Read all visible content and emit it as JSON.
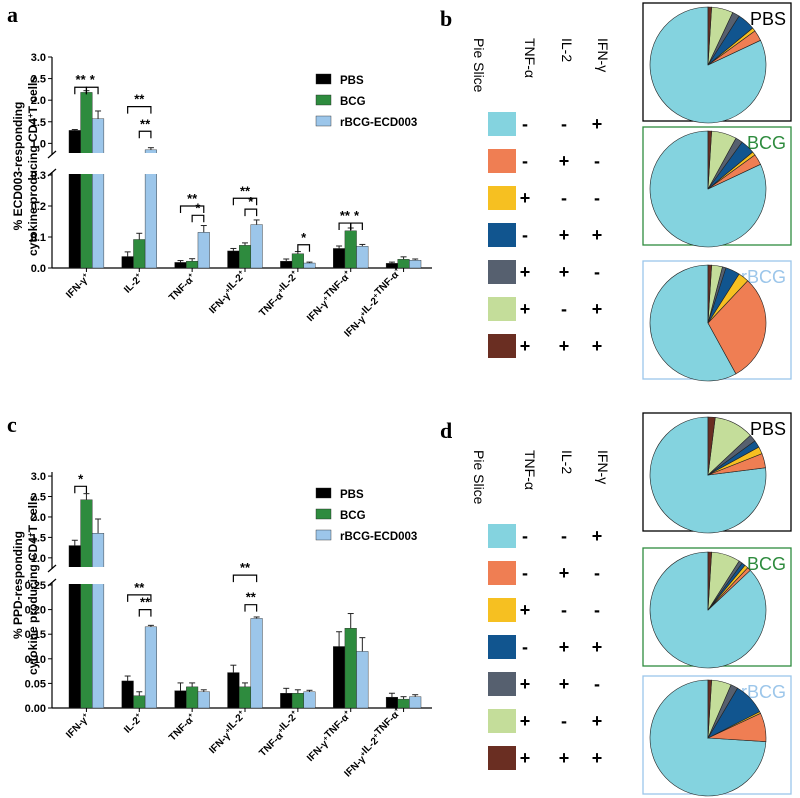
{
  "panel_labels": {
    "a": "a",
    "b": "b",
    "c": "c",
    "d": "d"
  },
  "colors": {
    "PBS": "#000000",
    "BCG": "#2e8b3e",
    "rBCG": "#9cc6ea"
  },
  "chart_data": [
    {
      "type": "bar",
      "panel": "a",
      "ylabel_line1": "% ECD003-responding",
      "ylabel_line2": "cytokine producing CD4",
      "ylabel_sup": "+",
      "ylabel_tail": "T cells",
      "categories": [
        "IFN-γ",
        "IL-2",
        "TNF-α",
        "IFN-γ IL-2",
        "TNF-α IL-2",
        "IFN-γ TNF-α",
        "IFN-γ IL-2 TNF-α"
      ],
      "category_labels": [
        [
          [
            "IFN-γ",
            "+"
          ]
        ],
        [
          [
            "IL-2",
            "+"
          ]
        ],
        [
          [
            "TNF-α",
            "+"
          ]
        ],
        [
          [
            "IFN-γ",
            "+"
          ],
          [
            "IL-2",
            "+"
          ]
        ],
        [
          [
            "TNF-α",
            "+"
          ],
          [
            "IL-2",
            "+"
          ]
        ],
        [
          [
            "IFN-γ",
            "+"
          ],
          [
            "TNF-α",
            "+"
          ]
        ],
        [
          [
            "IFN-γ",
            "+"
          ],
          [
            "IL-2",
            "+"
          ],
          [
            "TNF-α",
            "+"
          ]
        ]
      ],
      "series": [
        {
          "name": "PBS",
          "values": [
            1.3,
            0.037,
            0.018,
            0.055,
            0.022,
            0.063,
            0.015
          ],
          "errors": [
            0.02,
            0.015,
            0.006,
            0.008,
            0.007,
            0.008,
            0.004
          ]
        },
        {
          "name": "BCG",
          "values": [
            2.18,
            0.092,
            0.022,
            0.073,
            0.046,
            0.12,
            0.028
          ],
          "errors": [
            0.04,
            0.02,
            0.008,
            0.008,
            0.007,
            0.009,
            0.008
          ]
        },
        {
          "name": "rBCG-ECD003",
          "values": [
            1.57,
            0.85,
            0.115,
            0.14,
            0.016,
            0.07,
            0.025
          ],
          "errors": [
            0.18,
            0.05,
            0.022,
            0.015,
            0.003,
            0.006,
            0.004
          ]
        }
      ],
      "upper_axis": {
        "range": [
          0.8,
          3.0
        ],
        "ticks": [
          "1.0",
          "1.5",
          "2.0",
          "2.5",
          "3.0"
        ]
      },
      "lower_axis": {
        "range": [
          0,
          0.3
        ],
        "ticks": [
          "0.0",
          "0.1",
          "0.2",
          "0.3"
        ]
      },
      "significance": [
        {
          "cat": 0,
          "from": 0,
          "to": 1,
          "label": "**",
          "seg": "upper",
          "y": 2.3
        },
        {
          "cat": 0,
          "from": 1,
          "to": 2,
          "label": "*",
          "seg": "upper",
          "y": 2.3
        },
        {
          "cat": 1,
          "from": 0,
          "to": 2,
          "label": "**",
          "seg": "upper",
          "y": 1.85
        },
        {
          "cat": 1,
          "from": 1,
          "to": 2,
          "label": "**",
          "seg": "upper",
          "y": 1.28
        },
        {
          "cat": 2,
          "from": 0,
          "to": 2,
          "label": "**",
          "seg": "lower",
          "y": 0.2
        },
        {
          "cat": 2,
          "from": 1,
          "to": 2,
          "label": "*",
          "seg": "lower",
          "y": 0.17
        },
        {
          "cat": 3,
          "from": 0,
          "to": 2,
          "label": "**",
          "seg": "lower",
          "y": 0.225
        },
        {
          "cat": 3,
          "from": 1,
          "to": 2,
          "label": "*",
          "seg": "lower",
          "y": 0.19
        },
        {
          "cat": 4,
          "from": 1,
          "to": 2,
          "label": "*",
          "seg": "lower",
          "y": 0.075
        },
        {
          "cat": 5,
          "from": 0,
          "to": 1,
          "label": "**",
          "seg": "lower",
          "y": 0.145
        },
        {
          "cat": 5,
          "from": 1,
          "to": 2,
          "label": "*",
          "seg": "lower",
          "y": 0.145
        }
      ],
      "legend": [
        "PBS",
        "BCG",
        "rBCG-ECD003"
      ]
    },
    {
      "type": "bar",
      "panel": "c",
      "ylabel_line1": "% PPD-responding",
      "ylabel_line2": "cytokine producing CD4",
      "ylabel_sup": "+",
      "ylabel_tail": "T cells",
      "categories": [
        "IFN-γ",
        "IL-2",
        "TNF-α",
        "IFN-γ IL-2",
        "TNF-α IL-2",
        "IFN-γ TNF-α",
        "IFN-γ IL-2 TNF-α"
      ],
      "category_labels": [
        [
          [
            "IFN-γ",
            "+"
          ]
        ],
        [
          [
            "IL-2",
            "+"
          ]
        ],
        [
          [
            "TNF-α",
            "+"
          ]
        ],
        [
          [
            "IFN-γ",
            "+"
          ],
          [
            "IL-2",
            "+"
          ]
        ],
        [
          [
            "TNF-α",
            "+"
          ],
          [
            "IL-2",
            "+"
          ]
        ],
        [
          [
            "IFN-γ",
            "+"
          ],
          [
            "TNF-α",
            "+"
          ]
        ],
        [
          [
            "IFN-γ",
            "+"
          ],
          [
            "IL-2",
            "+"
          ],
          [
            "TNF-α",
            "+"
          ]
        ]
      ],
      "series": [
        {
          "name": "PBS",
          "values": [
            1.3,
            0.055,
            0.035,
            0.072,
            0.03,
            0.125,
            0.022
          ],
          "errors": [
            0.13,
            0.01,
            0.016,
            0.015,
            0.01,
            0.03,
            0.008
          ]
        },
        {
          "name": "BCG",
          "values": [
            2.42,
            0.025,
            0.043,
            0.043,
            0.03,
            0.162,
            0.018
          ],
          "errors": [
            0.15,
            0.008,
            0.008,
            0.008,
            0.007,
            0.03,
            0.005
          ]
        },
        {
          "name": "rBCG-ECD003",
          "values": [
            1.6,
            0.165,
            0.033,
            0.182,
            0.033,
            0.115,
            0.023
          ],
          "errors": [
            0.35,
            0.003,
            0.004,
            0.003,
            0.003,
            0.028,
            0.004
          ]
        }
      ],
      "upper_axis": {
        "range": [
          0.8,
          3.1
        ],
        "ticks": [
          "1.0",
          "1.5",
          "2.0",
          "2.5",
          "3.0"
        ]
      },
      "lower_axis": {
        "range": [
          0,
          0.25
        ],
        "ticks": [
          "0.00",
          "0.05",
          "0.10",
          "0.15",
          "0.20",
          "0.25"
        ]
      },
      "significance": [
        {
          "cat": 0,
          "from": 0,
          "to": 1,
          "label": "*",
          "seg": "upper",
          "y": 2.75
        },
        {
          "cat": 1,
          "from": 0,
          "to": 2,
          "label": "**",
          "seg": "lower",
          "y": 0.23
        },
        {
          "cat": 1,
          "from": 1,
          "to": 2,
          "label": "**",
          "seg": "lower",
          "y": 0.2
        },
        {
          "cat": 3,
          "from": 0,
          "to": 2,
          "label": "**",
          "seg": "lower",
          "y": 0.27
        },
        {
          "cat": 3,
          "from": 1,
          "to": 2,
          "label": "**",
          "seg": "lower",
          "y": 0.21
        }
      ],
      "legend": [
        "PBS",
        "BCG",
        "rBCG-ECD003"
      ]
    },
    {
      "type": "pie",
      "panel": "b",
      "pies": [
        {
          "label": "PBS",
          "color": "#000000",
          "values": [
            82,
            3,
            1,
            5,
            2,
            6,
            1
          ]
        },
        {
          "label": "BCG",
          "color": "#2e8b3e",
          "values": [
            82,
            3,
            1,
            4,
            2,
            7,
            1
          ]
        },
        {
          "label": "rBCG",
          "color": "#9cc6ea",
          "values": [
            58,
            30,
            3,
            4,
            1,
            3,
            1
          ]
        }
      ]
    },
    {
      "type": "pie",
      "panel": "d",
      "pies": [
        {
          "label": "PBS",
          "color": "#000000",
          "values": [
            77,
            4,
            2,
            2,
            2,
            11,
            2
          ]
        },
        {
          "label": "BCG",
          "color": "#2e8b3e",
          "values": [
            87,
            1,
            1,
            1,
            1,
            8,
            1
          ]
        },
        {
          "label": "rBCG",
          "color": "#9cc6ea",
          "values": [
            74,
            8,
            0.5,
            9,
            2,
            5.5,
            1
          ]
        }
      ]
    }
  ],
  "key_table": {
    "headers": [
      "Pie Slice",
      "TNF-α",
      "IL-2",
      "IFN-γ"
    ],
    "rows": [
      {
        "color": "#84d3df",
        "signs": [
          "-",
          "-",
          "+"
        ]
      },
      {
        "color": "#ef7e53",
        "signs": [
          "-",
          "+",
          "-"
        ]
      },
      {
        "color": "#f6c021",
        "signs": [
          "+",
          "-",
          "-"
        ]
      },
      {
        "color": "#11558f",
        "signs": [
          "-",
          "+",
          "+"
        ]
      },
      {
        "color": "#56606f",
        "signs": [
          "+",
          "+",
          "-"
        ]
      },
      {
        "color": "#c4dd9a",
        "signs": [
          "+",
          "-",
          "+"
        ]
      },
      {
        "color": "#6a2e22",
        "signs": [
          "+",
          "+",
          "+"
        ]
      }
    ]
  }
}
